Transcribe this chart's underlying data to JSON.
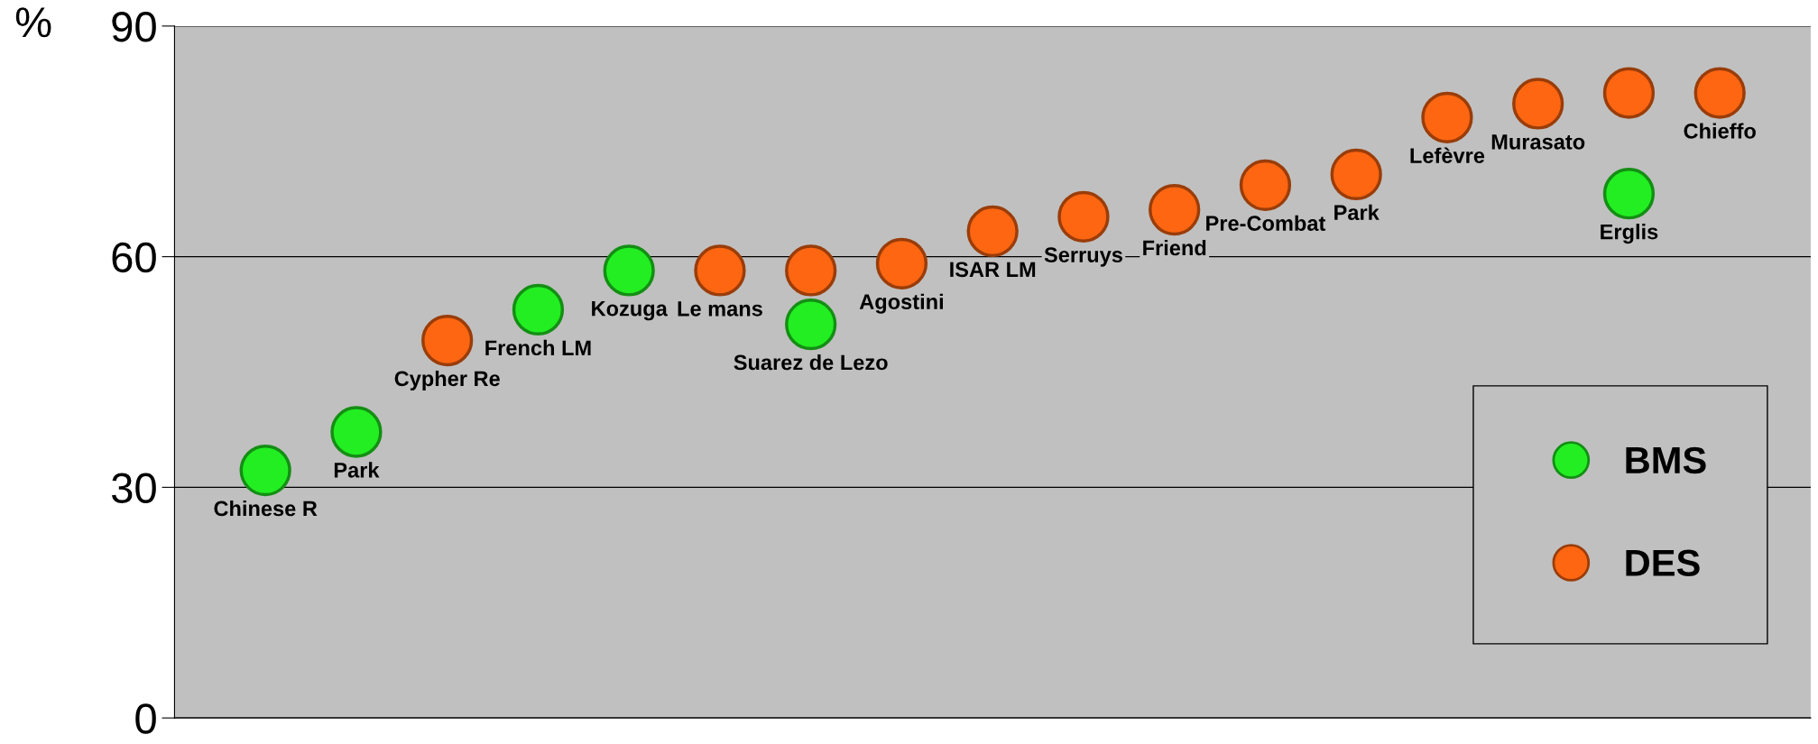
{
  "chart_data": {
    "type": "scatter",
    "ylabel": "%",
    "categories": [
      null,
      null,
      null,
      null,
      null,
      null,
      null,
      null,
      null,
      null,
      null,
      null,
      null,
      null,
      null,
      null,
      null
    ],
    "series": [
      {
        "name": "BMS",
        "color": "#22ee22",
        "values": [
          32.2,
          37.2,
          null,
          53.1,
          58.2,
          null,
          51.2,
          null,
          null,
          null,
          null,
          null,
          null,
          null,
          null,
          68.2,
          null
        ],
        "value_labels": [
          "Chinese R",
          "Park",
          null,
          "French LM",
          "Kozuga",
          null,
          "Suarez de Lezo",
          null,
          null,
          null,
          null,
          null,
          null,
          null,
          null,
          "Erglis",
          null
        ]
      },
      {
        "name": "DES",
        "color": "#ff6611",
        "values": [
          null,
          null,
          49.1,
          null,
          null,
          58.2,
          58.2,
          59.1,
          63.3,
          65.2,
          66.1,
          69.3,
          70.7,
          78.1,
          79.9,
          81.3,
          81.3
        ],
        "value_labels": [
          null,
          null,
          "Cypher Re",
          null,
          null,
          "Le mans",
          null,
          "Agostini",
          "ISAR LM",
          "Serruys",
          "Friend",
          "Pre-Combat",
          "Park",
          "Lefèvre",
          "Murasato",
          null,
          "Chieffo"
        ]
      }
    ],
    "ylim": [
      0,
      90
    ],
    "yticks": [
      0,
      30,
      60,
      90
    ],
    "grid": "y",
    "legend": "bottom right",
    "marker": "circle",
    "tick_labels": "y"
  }
}
